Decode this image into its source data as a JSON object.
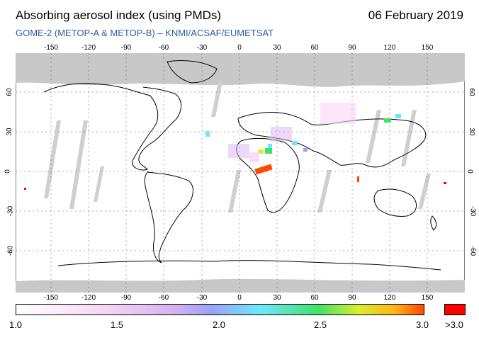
{
  "header": {
    "title": "Absorbing aerosol index (using PMDs)",
    "date": "06 February 2019",
    "subtitle": "GOME-2 (METOP-A & METOP-B)  –  KNMI/ACSAF/EUMETSAT"
  },
  "axes": {
    "lon_ticks": [
      "-150",
      "-120",
      "-90",
      "-60",
      "-30",
      "0",
      "30",
      "60",
      "90",
      "120",
      "150"
    ],
    "lat_ticks": [
      "60",
      "30",
      "0",
      "-30",
      "-60"
    ]
  },
  "colorbar": {
    "labels": [
      "1.0",
      "1.5",
      "2.0",
      "2.5",
      "3.0"
    ],
    "overflow_label": ">3.0",
    "overflow_color": "#ff0000"
  },
  "colors": {
    "land_outline": "#000000",
    "no_data": "#c8c8c8",
    "grid": "#555555"
  }
}
